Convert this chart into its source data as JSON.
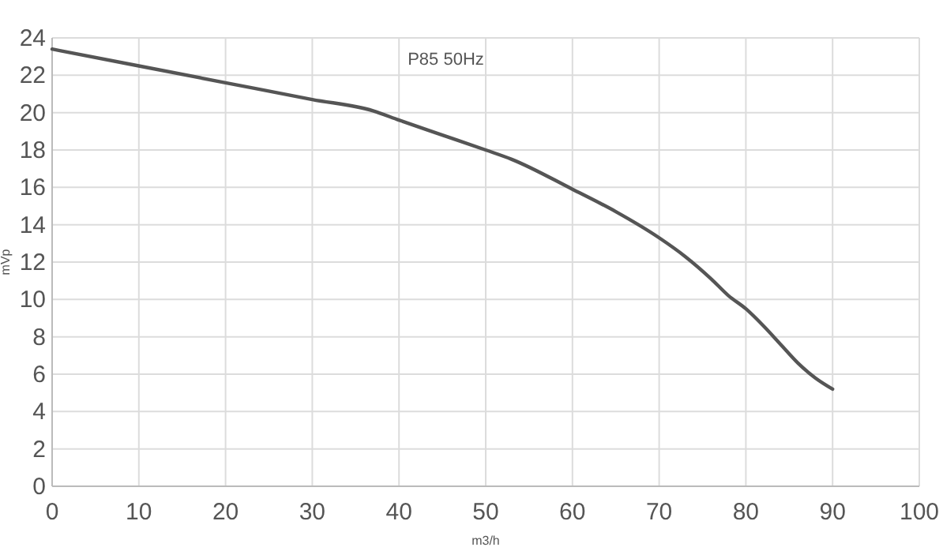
{
  "chart_data": {
    "type": "line",
    "xlabel": "m3/h",
    "ylabel": "mVp",
    "annotations": [
      "P85 50Hz"
    ],
    "series": [
      {
        "color": "#555555",
        "x": [
          0,
          10,
          20,
          30,
          37,
          40,
          45,
          50,
          53,
          60,
          65,
          70,
          73,
          76,
          78,
          80,
          82,
          84,
          86,
          88,
          90
        ],
        "values": [
          23.4,
          22.5,
          21.6,
          20.7,
          20.1,
          19.6,
          18.8,
          18.0,
          17.5,
          15.9,
          14.7,
          13.3,
          12.3,
          11.1,
          10.2,
          9.5,
          8.6,
          7.6,
          6.6,
          5.8,
          5.2
        ]
      }
    ],
    "xlim": [
      0,
      100
    ],
    "xticks": [
      0,
      10,
      20,
      30,
      40,
      50,
      60,
      70,
      80,
      90,
      100
    ],
    "ylim": [
      0,
      24
    ],
    "yticks": [
      0,
      2,
      4,
      6,
      8,
      10,
      12,
      14,
      16,
      18,
      20,
      22,
      24
    ],
    "grid": true,
    "marker": "none",
    "line_style": "solid"
  }
}
